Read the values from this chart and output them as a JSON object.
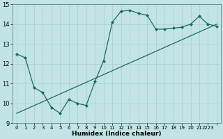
{
  "curve_x": [
    0,
    1,
    2,
    3,
    4,
    5,
    6,
    7,
    8,
    9,
    10,
    11,
    12,
    13,
    14,
    15,
    16,
    17,
    18,
    19,
    20,
    21,
    22,
    23
  ],
  "curve_y": [
    12.5,
    12.3,
    10.8,
    10.55,
    9.8,
    9.5,
    10.2,
    10.0,
    9.9,
    11.1,
    12.15,
    14.1,
    14.65,
    14.7,
    14.55,
    14.45,
    13.75,
    13.75,
    13.8,
    13.85,
    14.0,
    14.4,
    14.0,
    13.9
  ],
  "line_x": [
    0,
    23
  ],
  "line_y": [
    9.5,
    14.0
  ],
  "bg_color": "#c2e4e4",
  "line_color": "#1a6b5e",
  "grid_color": "#b0d4d4",
  "xlabel": "Humidex (Indice chaleur)",
  "xlim": [
    -0.5,
    23.5
  ],
  "ylim": [
    9,
    15
  ],
  "yticks": [
    9,
    10,
    11,
    12,
    13,
    14,
    15
  ],
  "xticks": [
    0,
    1,
    2,
    3,
    4,
    5,
    6,
    7,
    8,
    9,
    10,
    11,
    12,
    13,
    14,
    15,
    16,
    17,
    18,
    19,
    20,
    21,
    22,
    23
  ],
  "xtick_labels": [
    "0",
    "1",
    "2",
    "3",
    "4",
    "5",
    "6",
    "7",
    "8",
    "9",
    "10",
    "11",
    "12",
    "13",
    "14",
    "15",
    "16",
    "17",
    "18",
    "19",
    "20",
    "21",
    "2223",
    ""
  ],
  "marker": "D",
  "markersize": 2.0,
  "linewidth": 0.9,
  "xlabel_fontsize": 6.5,
  "ytick_fontsize": 6,
  "xtick_fontsize": 5.0
}
